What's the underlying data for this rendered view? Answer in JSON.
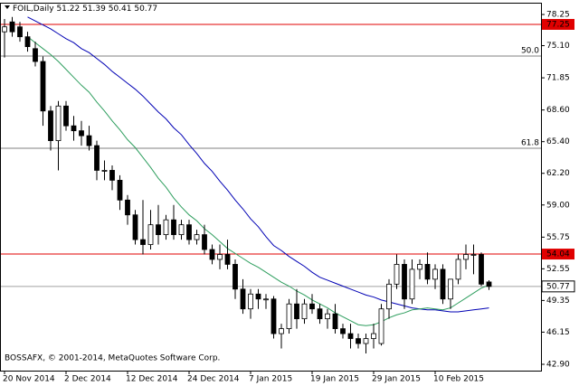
{
  "chart_data": {
    "type": "candlestick",
    "title": "FOIL,Daily",
    "footer": "BOSSAFX, © 2001-2014, MetaQuotes Software Corp.",
    "categories": [
      "20 Nov 2014",
      null,
      null,
      null,
      null,
      null,
      null,
      null,
      "2 Dec 2014",
      null,
      null,
      null,
      null,
      null,
      null,
      null,
      "12 Dec 2014",
      null,
      null,
      null,
      null,
      null,
      null,
      null,
      "24 Dec 2014",
      null,
      null,
      null,
      null,
      null,
      null,
      null,
      "7 Jan 2015",
      null,
      null,
      null,
      null,
      null,
      null,
      null,
      "19 Jan 2015",
      null,
      null,
      null,
      null,
      null,
      null,
      null,
      "29 Jan 2015",
      null,
      null,
      null,
      null,
      null,
      null,
      null,
      "10 Feb 2015",
      null,
      null,
      null,
      null,
      null,
      null,
      null
    ],
    "open": [
      76.5,
      77.5,
      77.0,
      76.0,
      74.8,
      73.5,
      68.5,
      65.5,
      69.0,
      67.0,
      66.5,
      66.0,
      65.0,
      62.5,
      62.5,
      61.5,
      59.5,
      58.0,
      55.5,
      55.0,
      57.0,
      56.0,
      57.5,
      56.0,
      57.0,
      55.5,
      56.0,
      54.5,
      53.5,
      54.0,
      53.0,
      50.5,
      48.5,
      50.0,
      49.5,
      49.5,
      46.0,
      46.5,
      49.0,
      47.5,
      49.0,
      48.5,
      47.5,
      48.0,
      46.5,
      46.0,
      45.5,
      45.0,
      45.5,
      45.0,
      48.5,
      51.0,
      53.0,
      49.5,
      52.5,
      53.0,
      51.5,
      52.5,
      49.5,
      51.5,
      53.5,
      54.0,
      54.0,
      51.22
    ],
    "high": [
      77.8,
      78.0,
      77.5,
      76.5,
      75.5,
      74.0,
      69.0,
      69.5,
      69.5,
      68.0,
      67.5,
      67.0,
      65.5,
      63.5,
      63.0,
      62.0,
      60.0,
      58.5,
      59.5,
      58.5,
      59.0,
      58.0,
      59.0,
      57.5,
      57.5,
      56.5,
      57.0,
      55.0,
      55.0,
      55.5,
      53.5,
      51.5,
      50.5,
      50.5,
      50.0,
      49.8,
      47.0,
      49.5,
      50.5,
      49.5,
      50.0,
      49.0,
      48.5,
      49.0,
      47.0,
      47.0,
      46.0,
      46.0,
      47.0,
      49.0,
      51.5,
      54.0,
      53.5,
      53.5,
      53.5,
      54.2,
      53.0,
      53.0,
      51.5,
      54.0,
      55.0,
      55.0,
      54.2,
      51.39
    ],
    "low": [
      73.9,
      76.0,
      75.5,
      74.5,
      73.0,
      67.0,
      64.5,
      62.5,
      66.5,
      65.5,
      65.0,
      64.5,
      61.5,
      61.5,
      60.5,
      58.5,
      57.0,
      55.0,
      54.0,
      54.5,
      55.0,
      55.5,
      55.5,
      55.5,
      55.0,
      55.0,
      54.0,
      53.0,
      52.5,
      52.5,
      49.5,
      48.0,
      47.5,
      48.5,
      48.5,
      45.5,
      44.5,
      46.0,
      46.5,
      47.0,
      48.0,
      47.0,
      46.5,
      46.0,
      45.5,
      44.5,
      44.5,
      44.0,
      44.5,
      44.8,
      47.5,
      50.5,
      48.5,
      49.0,
      51.5,
      51.0,
      50.5,
      49.0,
      48.5,
      51.0,
      52.5,
      52.0,
      50.8,
      50.41
    ],
    "close": [
      77.0,
      76.5,
      76.0,
      75.0,
      73.5,
      68.5,
      65.5,
      69.0,
      67.0,
      66.5,
      66.0,
      65.0,
      62.5,
      62.5,
      61.5,
      59.5,
      58.0,
      55.5,
      55.0,
      57.0,
      56.0,
      57.5,
      56.0,
      57.0,
      55.5,
      56.0,
      54.5,
      53.5,
      54.0,
      53.0,
      50.5,
      48.5,
      50.0,
      49.5,
      49.5,
      46.0,
      46.5,
      49.0,
      47.5,
      49.0,
      48.5,
      47.5,
      48.0,
      46.5,
      46.0,
      45.5,
      45.0,
      45.5,
      46.0,
      48.5,
      51.0,
      53.0,
      49.5,
      52.5,
      53.0,
      51.5,
      52.5,
      49.5,
      51.5,
      53.5,
      54.0,
      54.0,
      51.0,
      50.77
    ],
    "moving_averages": [
      {
        "color": "#0000b4",
        "values": [
          null,
          null,
          null,
          78.0,
          77.6,
          77.2,
          76.8,
          76.3,
          75.8,
          75.4,
          74.8,
          74.4,
          73.8,
          73.2,
          72.5,
          71.9,
          71.3,
          70.7,
          70.0,
          69.2,
          68.4,
          67.7,
          66.8,
          66.1,
          65.1,
          64.2,
          63.2,
          62.4,
          61.4,
          60.5,
          59.5,
          58.6,
          57.6,
          56.8,
          55.8,
          54.9,
          54.4,
          53.8,
          53.3,
          52.8,
          52.2,
          51.7,
          51.4,
          51.1,
          50.8,
          50.5,
          50.2,
          49.9,
          49.7,
          49.4,
          49.2,
          49.0,
          48.8,
          48.6,
          48.5,
          48.4,
          48.4,
          48.3,
          48.2,
          48.2,
          48.3,
          48.4,
          48.5,
          48.6
        ]
      },
      {
        "color": "#2e9e5e",
        "values": [
          null,
          null,
          null,
          76.0,
          75.4,
          74.8,
          74.2,
          73.5,
          72.7,
          71.9,
          71.1,
          70.4,
          69.4,
          68.5,
          67.5,
          66.6,
          65.6,
          64.8,
          63.8,
          62.8,
          61.7,
          60.8,
          59.7,
          58.8,
          58.0,
          57.4,
          56.6,
          56.0,
          55.3,
          54.6,
          54.1,
          53.6,
          53.1,
          52.7,
          52.2,
          51.7,
          51.2,
          50.8,
          50.3,
          49.9,
          49.4,
          49.0,
          48.6,
          48.1,
          47.7,
          47.3,
          46.9,
          46.8,
          46.9,
          47.2,
          47.6,
          47.9,
          48.1,
          48.4,
          48.5,
          48.6,
          48.5,
          48.4,
          48.6,
          49.1,
          49.6,
          50.1,
          50.6,
          50.9
        ]
      }
    ],
    "levels": [
      {
        "value": 77.25,
        "color": "#e00000"
      },
      {
        "value": 54.04,
        "color": "#e00000"
      }
    ],
    "fib_levels": [
      {
        "price": 74.05,
        "label": "50.0"
      },
      {
        "price": 64.73,
        "label": "61.8"
      }
    ],
    "ylim": [
      42.26,
      79.44
    ],
    "yticks": [
      78.25,
      {
        "value": 75.1,
        "label": "75.10"
      },
      71.85,
      {
        "value": 68.6,
        "label": "68.60"
      },
      {
        "value": 65.4,
        "label": "65.40"
      },
      {
        "value": 62.2,
        "label": "62.20"
      },
      {
        "value": 59,
        "label": "59.00"
      },
      55.75,
      52.55,
      49.35,
      46.15,
      {
        "value": 42.9,
        "label": "42.90"
      }
    ]
  }
}
